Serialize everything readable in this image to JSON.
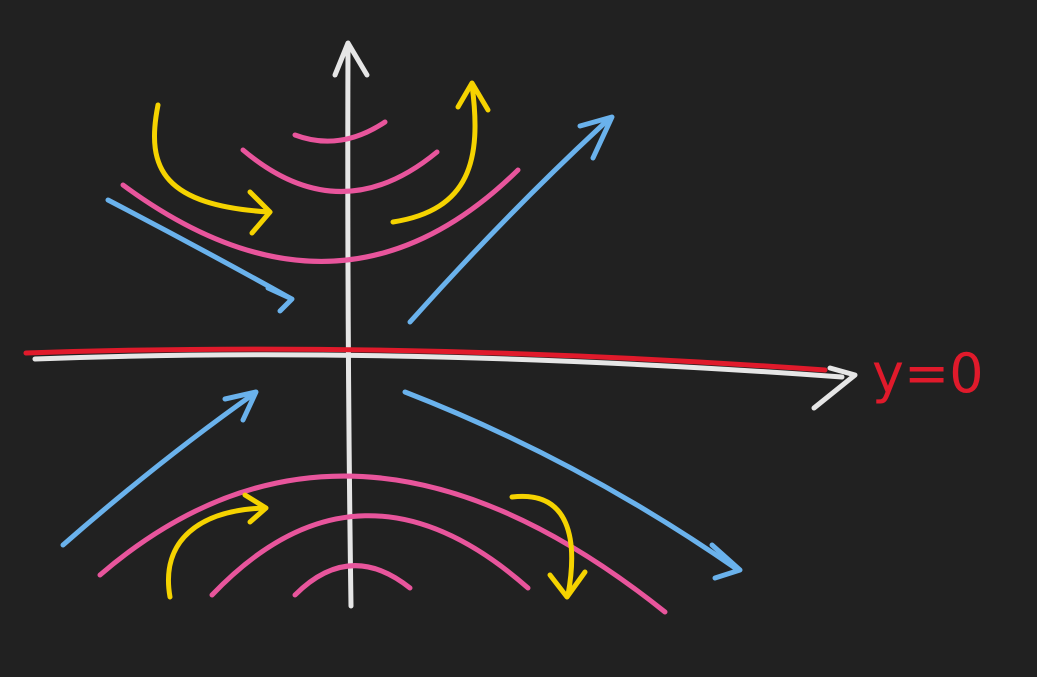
{
  "label": "y=0"
}
